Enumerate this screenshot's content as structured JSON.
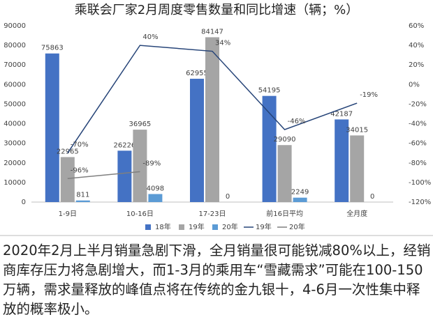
{
  "chart_data": {
    "type": "bar",
    "title": "乘联会厂家2月周度零售数量和同比增速（辆；%）",
    "categories": [
      "1-9日",
      "10-16日",
      "17-23日",
      "前16日平均",
      "全月度"
    ],
    "series": [
      {
        "name": "18年",
        "color": "#4472c4",
        "values": [
          75863,
          26226,
          62955,
          54195,
          42187
        ]
      },
      {
        "name": "19年",
        "color": "#a5a5a5",
        "values": [
          22965,
          36965,
          84147,
          29090,
          34015
        ]
      },
      {
        "name": "20年",
        "color": "#5b9bd5",
        "values": [
          811,
          4098,
          0,
          2249,
          0
        ]
      },
      {
        "name": "19年",
        "type": "line",
        "axis": "y2",
        "color": "#264478",
        "values": [
          -70,
          40,
          34,
          -46,
          -19
        ],
        "value_labels": [
          "-70%",
          "40%",
          "34%",
          "-46%",
          "-19%"
        ]
      },
      {
        "name": "20年",
        "type": "line",
        "axis": "y2",
        "color": "#7f7f7f",
        "values": [
          -96,
          -89,
          null,
          null,
          null
        ],
        "value_labels": [
          "-96%",
          "-89%",
          null,
          null,
          null
        ]
      }
    ],
    "ylim": [
      0,
      90000
    ],
    "yticks": [
      0,
      10000,
      20000,
      30000,
      40000,
      50000,
      60000,
      70000,
      80000,
      90000
    ],
    "y2lim": [
      -120,
      60
    ],
    "y2ticks": [
      {
        "value": -120,
        "label": "-120%"
      },
      {
        "value": -100,
        "label": "-100%"
      },
      {
        "value": -80,
        "label": "-80%"
      },
      {
        "value": -60,
        "label": "-60%"
      },
      {
        "value": -40,
        "label": "-40%"
      },
      {
        "value": -20,
        "label": "-20%"
      },
      {
        "value": 0,
        "label": "0%"
      },
      {
        "value": 20,
        "label": "20%"
      },
      {
        "value": 40,
        "label": "40%"
      },
      {
        "value": 60,
        "label": "60%"
      }
    ],
    "grid": false,
    "legend": "bottom"
  },
  "caption": "2020年2月上半月销量急剧下滑，全月销量很可能锐减80%以上，经销商库存压力将急剧增大，而1-3月的乘用车“雪藏需求”可能在100-150万辆，需求量释放的峰值点将在传统的金九银十，4-6月一次性集中释放的概率极小。"
}
